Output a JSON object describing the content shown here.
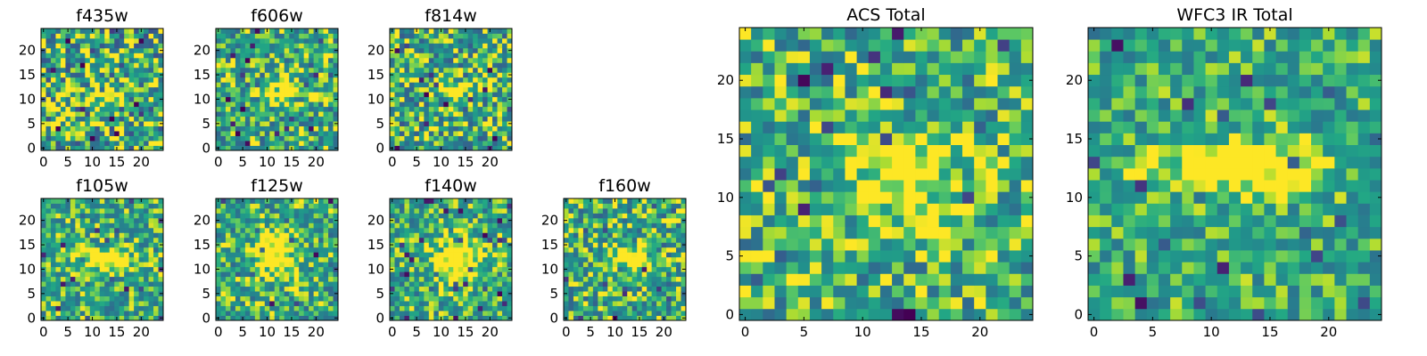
{
  "figure": {
    "description_free": true
  },
  "chart_data": [
    {
      "type": "heatmap",
      "title": "f435w",
      "grid": 25,
      "xticks": [
        0,
        5,
        10,
        15,
        20
      ],
      "yticks": [
        0,
        5,
        10,
        15,
        20
      ],
      "colormap": "viridis",
      "seed": 11,
      "noise": 0.42,
      "source": {
        "x": 12.5,
        "y": 10.5,
        "sx": 3.5,
        "sy": 1.2,
        "amp": 0.25
      }
    },
    {
      "type": "heatmap",
      "title": "f606w",
      "grid": 25,
      "xticks": [
        0,
        5,
        10,
        15,
        20
      ],
      "yticks": [
        0,
        5,
        10,
        15,
        20
      ],
      "colormap": "viridis",
      "seed": 23,
      "noise": 0.32,
      "source": {
        "x": 13,
        "y": 12,
        "sx": 3.5,
        "sy": 1.2,
        "amp": 0.55
      }
    },
    {
      "type": "heatmap",
      "title": "f814w",
      "grid": 25,
      "xticks": [
        0,
        5,
        10,
        15,
        20
      ],
      "yticks": [
        0,
        5,
        10,
        15,
        20
      ],
      "colormap": "viridis",
      "seed": 37,
      "noise": 0.36,
      "source": {
        "x": 13,
        "y": 12,
        "sx": 3,
        "sy": 1.3,
        "amp": 0.45
      }
    },
    {
      "type": "heatmap",
      "title": "f105w",
      "grid": 25,
      "xticks": [
        0,
        5,
        10,
        15,
        20
      ],
      "yticks": [
        0,
        5,
        10,
        15,
        20
      ],
      "colormap": "viridis",
      "seed": 41,
      "noise": 0.28,
      "source": {
        "x": 12.5,
        "y": 12,
        "sx": 4,
        "sy": 1.5,
        "amp": 0.5
      }
    },
    {
      "type": "heatmap",
      "title": "f125w",
      "grid": 25,
      "xticks": [
        0,
        5,
        10,
        15,
        20
      ],
      "yticks": [
        0,
        5,
        10,
        15,
        20
      ],
      "colormap": "viridis",
      "seed": 53,
      "noise": 0.3,
      "source": {
        "x": 12,
        "y": 13,
        "sx": 3,
        "sy": 3.5,
        "amp": 0.5
      }
    },
    {
      "type": "heatmap",
      "title": "f140w",
      "grid": 25,
      "xticks": [
        0,
        5,
        10,
        15,
        20
      ],
      "yticks": [
        0,
        5,
        10,
        15,
        20
      ],
      "colormap": "viridis",
      "seed": 67,
      "noise": 0.28,
      "source": {
        "x": 13,
        "y": 12,
        "sx": 3.5,
        "sy": 3,
        "amp": 0.55
      }
    },
    {
      "type": "heatmap",
      "title": "f160w",
      "grid": 25,
      "xticks": [
        0,
        5,
        10,
        15,
        20
      ],
      "yticks": [
        0,
        5,
        10,
        15,
        20
      ],
      "colormap": "viridis",
      "seed": 79,
      "noise": 0.32,
      "source": {
        "x": 12.5,
        "y": 12.5,
        "sx": 3,
        "sy": 1.6,
        "amp": 0.45
      }
    },
    {
      "type": "heatmap",
      "title": "ACS Total",
      "grid": 25,
      "xticks": [
        0,
        5,
        10,
        15,
        20
      ],
      "yticks": [
        0,
        5,
        10,
        15,
        20
      ],
      "colormap": "viridis",
      "seed": 97,
      "noise": 0.3,
      "source": {
        "x": 13.5,
        "y": 11.5,
        "sx": 4,
        "sy": 2.5,
        "amp": 0.4
      }
    },
    {
      "type": "heatmap",
      "title": "WFC3 IR Total",
      "grid": 25,
      "xticks": [
        0,
        5,
        10,
        15,
        20
      ],
      "yticks": [
        0,
        5,
        10,
        15,
        20
      ],
      "colormap": "viridis",
      "seed": 131,
      "noise": 0.24,
      "source": {
        "x": 12.5,
        "y": 12.5,
        "sx": 5,
        "sy": 1.6,
        "amp": 0.5
      }
    }
  ]
}
